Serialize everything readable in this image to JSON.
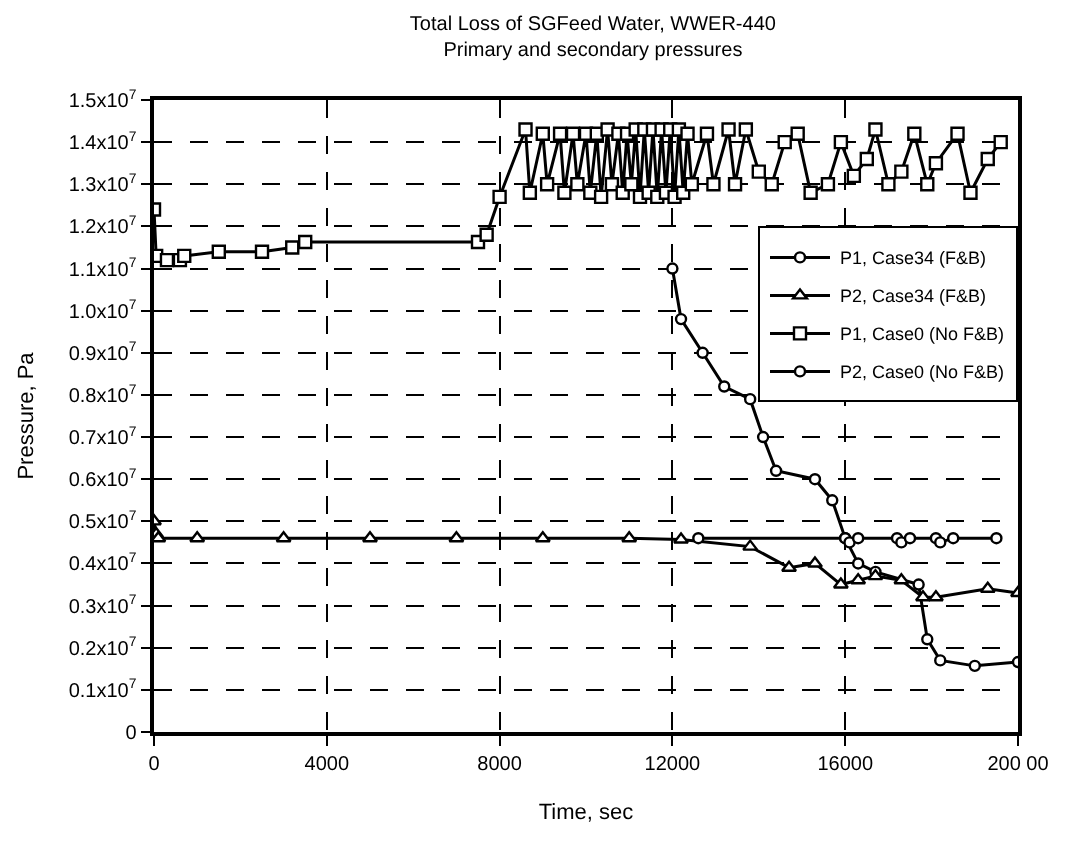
{
  "chart_data": {
    "type": "line",
    "title": "Total Loss of SGFeed Water, WWER-440",
    "subtitle": "Primary and secondary pressures",
    "xlabel": "Time, sec",
    "ylabel": "Pressure, Pa",
    "xlim": [
      0,
      20000
    ],
    "xticks": [
      0,
      4000,
      8000,
      12000,
      16000,
      {
        "value": 20000,
        "label": "200 00"
      }
    ],
    "ylim": [
      0,
      15000000
    ],
    "yticks": [
      0,
      {
        "value": 1000000,
        "label": "0.1x10$^{7}$"
      },
      {
        "value": 2000000,
        "label": "0.2x10$^{7}$"
      },
      {
        "value": 3000000,
        "label": "0.3x10$^{7}$"
      },
      {
        "value": 4000000,
        "label": "0.4x10$^{7}$"
      },
      {
        "value": 5000000,
        "label": "0.5x10$^{7}$"
      },
      {
        "value": 6000000,
        "label": "0.6x10$^{7}$"
      },
      {
        "value": 7000000,
        "label": "0.7x10$^{7}$"
      },
      {
        "value": 8000000,
        "label": "0.8x10$^{7}$"
      },
      {
        "value": 9000000,
        "label": "0.9x10$^{7}$"
      },
      {
        "value": 10000000,
        "label": "1.0x10$^{7}$"
      },
      {
        "value": 11000000,
        "label": "1.1x10$^{7}$"
      },
      {
        "value": 12000000,
        "label": "1.2x10$^{7}$"
      },
      {
        "value": 13000000,
        "label": "1.3x10$^{7}$"
      },
      {
        "value": 14000000,
        "label": "1.4x10$^{7}$"
      },
      {
        "value": 15000000,
        "label": "1.5x10$^{7}$"
      }
    ],
    "grid": true,
    "legend": "top right",
    "line_style": "solid",
    "series": [
      {
        "name": "P1, Case34 (F&B)",
        "color": "#000000",
        "marker": "circle",
        "x": [
          12000,
          12200,
          12700,
          13200,
          13800,
          14100,
          14400,
          15300,
          15700,
          16000,
          16300,
          16700,
          17700,
          17900,
          18200,
          19000,
          20000
        ],
        "values": [
          11000000,
          9800000,
          9000000,
          8200000,
          7900000,
          7000000,
          6200000,
          6000000,
          5500000,
          4600000,
          4000000,
          3800000,
          3500000,
          2200000,
          1700000,
          1570000,
          1660000
        ]
      },
      {
        "name": "P2, Case34 (F&B)",
        "color": "#000000",
        "marker": "triangle",
        "x": [
          0,
          50,
          100,
          1000,
          3000,
          5000,
          7000,
          9000,
          11000,
          12200,
          13800,
          14700,
          15300,
          15900,
          16300,
          16700,
          17300,
          17800,
          18100,
          19300,
          20000
        ],
        "values": [
          5000000,
          4700000,
          4600000,
          4600000,
          4600000,
          4600000,
          4600000,
          4600000,
          4600000,
          4570000,
          4400000,
          3900000,
          4000000,
          3500000,
          3600000,
          3700000,
          3600000,
          3200000,
          3200000,
          3400000,
          3300000
        ]
      },
      {
        "name": "P1, Case0 (No F&B)",
        "color": "#000000",
        "marker": "square",
        "x": [
          0,
          50,
          300,
          600,
          700,
          1500,
          2500,
          3200,
          3500,
          7500,
          7700,
          8000,
          8600,
          8700,
          9000,
          9100,
          9400,
          9500,
          9700,
          9800,
          10000,
          10100,
          10250,
          10350,
          10500,
          10600,
          10750,
          10850,
          10950,
          11050,
          11150,
          11250,
          11350,
          11450,
          11550,
          11650,
          11750,
          11850,
          11950,
          12050,
          12150,
          12250,
          12350,
          12450,
          12800,
          12950,
          13300,
          13450,
          13700,
          14000,
          14300,
          14600,
          14900,
          15200,
          15600,
          15900,
          16200,
          16500,
          16700,
          17000,
          17300,
          17600,
          17900,
          18100,
          18600,
          18900,
          19300,
          19600
        ],
        "values": [
          12400000,
          11300000,
          11200000,
          11200000,
          11300000,
          11400000,
          11400000,
          11500000,
          11630000,
          11630000,
          11800000,
          12700000,
          14300000,
          12800000,
          14200000,
          13000000,
          14200000,
          12800000,
          14200000,
          13000000,
          14200000,
          12800000,
          14200000,
          12700000,
          14300000,
          13000000,
          14200000,
          12800000,
          14200000,
          13000000,
          14300000,
          12700000,
          14300000,
          12800000,
          14300000,
          12700000,
          14300000,
          12800000,
          14300000,
          12700000,
          14300000,
          12800000,
          14200000,
          13000000,
          14200000,
          13000000,
          14300000,
          13000000,
          14300000,
          13300000,
          13000000,
          14000000,
          14200000,
          12800000,
          13000000,
          14000000,
          13200000,
          13600000,
          14300000,
          13000000,
          13300000,
          14200000,
          13000000,
          13500000,
          14200000,
          12800000,
          13600000,
          14000000
        ]
      },
      {
        "name": "P2, Case0 (No F&B)",
        "color": "#000000",
        "marker": "circle",
        "x": [
          12600,
          16000,
          16100,
          16300,
          17200,
          17300,
          17500,
          18100,
          18200,
          18500,
          19500
        ],
        "values": [
          4600000,
          4600000,
          4500000,
          4600000,
          4600000,
          4500000,
          4600000,
          4600000,
          4500000,
          4600000,
          4600000
        ]
      }
    ]
  }
}
